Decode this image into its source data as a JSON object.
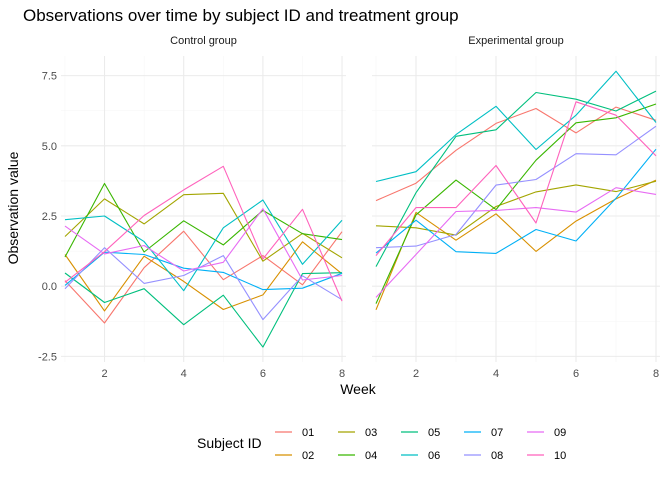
{
  "chart_data": {
    "type": "line",
    "title": "Observations over time by subject ID and treatment group",
    "xlabel": "Week",
    "ylabel": "Observation value",
    "xlim": [
      0.9,
      8.1
    ],
    "ylim": [
      -2.7,
      8.2
    ],
    "x_ticks": [
      2,
      4,
      6,
      8
    ],
    "x_tick_labels": [
      "2",
      "4",
      "6",
      "8"
    ],
    "y_ticks": [
      -2.5,
      0,
      2.5,
      5,
      7.5
    ],
    "y_tick_labels": [
      "-2.5",
      "0.0",
      "2.5",
      "5.0",
      "7.5"
    ],
    "grid": true,
    "legend": {
      "title": "Subject ID",
      "placement": "bottom",
      "entries": [
        "01",
        "02",
        "03",
        "04",
        "05",
        "06",
        "07",
        "08",
        "09",
        "10"
      ]
    },
    "colors": {
      "01": "#F8766D",
      "02": "#D89000",
      "03": "#A3A500",
      "04": "#39B600",
      "05": "#00BF7D",
      "06": "#00BFC4",
      "07": "#00B0F6",
      "08": "#9590FF",
      "09": "#E76BF3",
      "10": "#FF62BC"
    },
    "x": [
      1,
      2,
      3,
      4,
      5,
      6,
      7,
      8
    ],
    "panels": [
      {
        "name": "Control group",
        "series": [
          {
            "name": "01",
            "values": [
              0.2,
              -1.31,
              0.66,
              1.96,
              0.23,
              1.09,
              0.05,
              1.94
            ]
          },
          {
            "name": "02",
            "values": [
              1.13,
              -0.88,
              1.07,
              0.17,
              -0.83,
              -0.31,
              1.58,
              0.44
            ]
          },
          {
            "name": "03",
            "values": [
              1.77,
              3.11,
              2.22,
              3.26,
              3.31,
              0.89,
              1.88,
              1.01
            ]
          },
          {
            "name": "04",
            "values": [
              1.04,
              3.66,
              1.22,
              2.33,
              1.47,
              2.7,
              1.87,
              1.66
            ]
          },
          {
            "name": "05",
            "values": [
              0.47,
              -0.58,
              -0.09,
              -1.37,
              -0.32,
              -2.17,
              0.45,
              0.48
            ]
          },
          {
            "name": "06",
            "values": [
              2.37,
              2.5,
              1.59,
              -0.16,
              2.08,
              3.07,
              0.78,
              2.35
            ]
          },
          {
            "name": "07",
            "values": [
              0.03,
              1.21,
              1.13,
              0.64,
              0.49,
              -0.12,
              -0.07,
              0.46
            ]
          },
          {
            "name": "08",
            "values": [
              -0.09,
              1.37,
              0.1,
              0.38,
              1.09,
              -1.19,
              0.37,
              -0.48
            ]
          },
          {
            "name": "09",
            "values": [
              2.14,
              1.15,
              1.45,
              0.54,
              0.85,
              2.76,
              0.22,
              0.38
            ]
          },
          {
            "name": "10",
            "values": [
              0.14,
              1.23,
              2.52,
              3.43,
              4.27,
              0.97,
              2.74,
              -0.53
            ]
          }
        ]
      },
      {
        "name": "Experimental group",
        "series": [
          {
            "name": "01",
            "values": [
              3.05,
              3.67,
              4.84,
              5.8,
              6.33,
              5.46,
              6.38,
              5.91
            ]
          },
          {
            "name": "02",
            "values": [
              -0.84,
              2.63,
              1.64,
              2.58,
              1.24,
              2.32,
              3.11,
              3.78
            ]
          },
          {
            "name": "03",
            "values": [
              2.15,
              2.08,
              1.82,
              2.84,
              3.36,
              3.61,
              3.37,
              3.74
            ]
          },
          {
            "name": "04",
            "values": [
              -0.62,
              2.54,
              3.78,
              2.73,
              4.49,
              5.82,
              6.0,
              6.49
            ]
          },
          {
            "name": "05",
            "values": [
              0.7,
              3.33,
              5.34,
              5.57,
              6.9,
              6.66,
              6.24,
              6.95
            ]
          },
          {
            "name": "06",
            "values": [
              3.73,
              4.08,
              5.4,
              6.41,
              4.87,
              6.09,
              7.66,
              5.83
            ]
          },
          {
            "name": "07",
            "values": [
              1.18,
              2.35,
              1.23,
              1.17,
              2.02,
              1.61,
              3.13,
              4.88
            ]
          },
          {
            "name": "08",
            "values": [
              1.37,
              1.43,
              1.84,
              3.6,
              3.8,
              4.72,
              4.68,
              5.7
            ]
          },
          {
            "name": "09",
            "values": [
              -0.4,
              1.13,
              2.66,
              2.7,
              2.8,
              2.64,
              3.51,
              3.27
            ]
          },
          {
            "name": "10",
            "values": [
              1.09,
              2.8,
              2.8,
              4.3,
              2.25,
              6.57,
              6.09,
              4.64
            ]
          }
        ]
      }
    ]
  }
}
